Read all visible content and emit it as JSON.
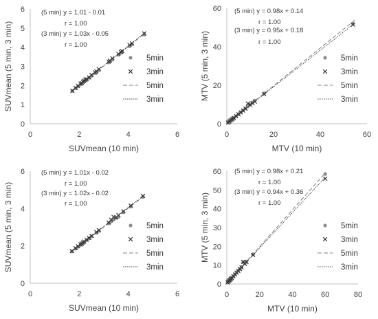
{
  "chart_data": [
    {
      "id": "p1",
      "type": "scatter",
      "xlabel": "SUVmean (10 min)",
      "ylabel": "SUVmean (5 min, 3 min)",
      "xlim": [
        0,
        6
      ],
      "ylim": [
        0,
        6
      ],
      "xticks": [
        0,
        2,
        4,
        6
      ],
      "yticks": [
        0,
        1,
        2,
        3,
        4,
        5,
        6
      ],
      "annotations": [
        "(5 min) y = 1.01 - 0.01",
        "r = 1.00",
        "(3 min) y = 1.03x - 0.05",
        "r = 1.00"
      ],
      "series": [
        {
          "name": "5min",
          "marker": "circle",
          "x": [
            1.72,
            1.85,
            1.95,
            2.05,
            2.1,
            2.15,
            2.2,
            2.25,
            2.3,
            2.4,
            2.5,
            2.65,
            2.7,
            2.8,
            3.2,
            3.25,
            3.35,
            3.6,
            3.7,
            3.75,
            4.05,
            4.15,
            4.65
          ],
          "y": [
            1.72,
            1.85,
            1.95,
            2.05,
            2.1,
            2.15,
            2.2,
            2.25,
            2.3,
            2.4,
            2.5,
            2.65,
            2.7,
            2.8,
            3.2,
            3.25,
            3.35,
            3.6,
            3.7,
            3.75,
            4.05,
            4.15,
            4.65
          ]
        },
        {
          "name": "3min",
          "marker": "x",
          "x": [
            1.72,
            1.85,
            1.95,
            2.05,
            2.1,
            2.15,
            2.2,
            2.25,
            2.3,
            2.4,
            2.5,
            2.65,
            2.7,
            2.8,
            3.2,
            3.25,
            3.35,
            3.6,
            3.7,
            3.75,
            4.05,
            4.15,
            4.65
          ],
          "y": [
            1.72,
            1.87,
            1.98,
            2.1,
            2.12,
            2.2,
            2.25,
            2.3,
            2.33,
            2.42,
            2.55,
            2.68,
            2.74,
            2.85,
            3.25,
            3.3,
            3.42,
            3.65,
            3.75,
            3.8,
            4.12,
            4.2,
            4.72
          ]
        }
      ],
      "fits": [
        {
          "name": "5min",
          "style": "dashed",
          "x": [
            1.7,
            4.7
          ],
          "y": [
            1.71,
            4.74
          ]
        },
        {
          "name": "3min",
          "style": "dotted",
          "x": [
            1.7,
            4.7
          ],
          "y": [
            1.7,
            4.79
          ]
        }
      ],
      "legend": {
        "position": "right",
        "entries": [
          "5min",
          "3min",
          "5min",
          "3min"
        ]
      }
    },
    {
      "id": "p2",
      "type": "scatter",
      "xlabel": "MTV (10 min)",
      "ylabel": "MTV (5 min, 3 min)",
      "xlim": [
        0,
        60
      ],
      "ylim": [
        0,
        60
      ],
      "xticks": [
        0,
        20,
        40,
        60
      ],
      "yticks": [
        0,
        20,
        40,
        60
      ],
      "annotations": [
        "(5 min) y = 0.98x + 0.14",
        "r = 1.00",
        "(3 min) y = 0.95x + 0.18",
        "r = 1.00"
      ],
      "series": [
        {
          "name": "5min",
          "marker": "circle",
          "x": [
            0.5,
            1,
            1.5,
            2,
            2.5,
            3,
            4,
            5,
            6,
            7,
            8,
            9,
            10,
            11,
            12,
            16,
            54
          ],
          "y": [
            0.6,
            1.1,
            1.6,
            2.1,
            2.6,
            3.1,
            4,
            5,
            6,
            7,
            8,
            9,
            10,
            11,
            12,
            15.8,
            52
          ]
        },
        {
          "name": "3min",
          "marker": "x",
          "x": [
            0.5,
            1,
            1.5,
            2,
            2.5,
            3,
            4,
            5,
            6,
            7,
            8,
            9,
            10,
            11,
            12,
            16,
            54
          ],
          "y": [
            0.6,
            1.1,
            1.6,
            2.1,
            2.5,
            3,
            3.9,
            4.9,
            5.9,
            6.8,
            7.8,
            10.5,
            9.8,
            10.7,
            11.5,
            15.4,
            51.5
          ]
        }
      ],
      "fits": [
        {
          "name": "5min",
          "style": "dashed",
          "x": [
            0,
            55
          ],
          "y": [
            0.14,
            54.04
          ]
        },
        {
          "name": "3min",
          "style": "dotted",
          "x": [
            0,
            55
          ],
          "y": [
            0.18,
            52.43
          ]
        }
      ],
      "legend": {
        "position": "right",
        "entries": [
          "5min",
          "3min",
          "5min",
          "3min"
        ]
      }
    },
    {
      "id": "p3",
      "type": "scatter",
      "xlabel": "SUVmean (10 min)",
      "ylabel": "SUVmean (5 min, 3 min)",
      "xlim": [
        0,
        6
      ],
      "ylim": [
        0,
        6
      ],
      "xticks": [
        0,
        2,
        4,
        6
      ],
      "yticks": [
        0,
        2,
        4,
        6
      ],
      "annotations": [
        "(5 min) y = 1.01x - 0.02",
        "r = 1.00",
        "(3 min) y = 1.02x - 0.02",
        "r = 1.00"
      ],
      "series": [
        {
          "name": "5min",
          "marker": "circle",
          "x": [
            1.7,
            1.85,
            1.95,
            2.05,
            2.1,
            2.15,
            2.2,
            2.3,
            2.4,
            2.5,
            2.7,
            2.8,
            3.2,
            3.3,
            3.4,
            3.5,
            3.6,
            3.8,
            4.1,
            4.6
          ],
          "y": [
            1.7,
            1.85,
            1.95,
            2.05,
            2.1,
            2.15,
            2.2,
            2.3,
            2.4,
            2.5,
            2.7,
            2.8,
            3.2,
            3.3,
            3.4,
            3.5,
            3.55,
            3.8,
            4.1,
            4.62
          ]
        },
        {
          "name": "3min",
          "marker": "x",
          "x": [
            1.7,
            1.85,
            1.95,
            2.05,
            2.1,
            2.15,
            2.2,
            2.3,
            2.4,
            2.5,
            2.7,
            2.8,
            3.2,
            3.3,
            3.4,
            3.5,
            3.6,
            3.8,
            4.1,
            4.6
          ],
          "y": [
            1.72,
            1.88,
            1.98,
            2.08,
            2.12,
            2.18,
            2.23,
            2.33,
            2.43,
            2.54,
            2.74,
            2.84,
            3.25,
            3.4,
            3.55,
            3.52,
            3.65,
            3.85,
            4.16,
            4.68
          ]
        }
      ],
      "fits": [
        {
          "name": "5min",
          "style": "dashed",
          "x": [
            1.7,
            4.6
          ],
          "y": [
            1.7,
            4.63
          ]
        },
        {
          "name": "3min",
          "style": "dotted",
          "x": [
            1.7,
            4.6
          ],
          "y": [
            1.71,
            4.67
          ]
        }
      ],
      "legend": {
        "position": "right",
        "entries": [
          "5min",
          "3min",
          "5min",
          "3min"
        ]
      }
    },
    {
      "id": "p4",
      "type": "scatter",
      "xlabel": "MTV (10 min)",
      "ylabel": "MTV (5 min, 3 min)",
      "xlim": [
        0,
        80
      ],
      "ylim": [
        0,
        60
      ],
      "xticks": [
        0,
        20,
        40,
        60,
        80
      ],
      "yticks": [
        0,
        10,
        20,
        30,
        40,
        50,
        60
      ],
      "annotations": [
        "(5 min) y = 0.98x + 0.21",
        "r = 1.00",
        "(3 min) y = 0.94x + 0.36",
        "r = 1.00"
      ],
      "series": [
        {
          "name": "5min",
          "marker": "circle",
          "x": [
            0.5,
            1,
            1.5,
            2,
            2.5,
            3,
            4,
            5,
            6,
            7,
            8,
            9,
            10,
            11,
            12,
            16,
            60
          ],
          "y": [
            0.7,
            1.2,
            1.7,
            2.2,
            2.7,
            3.2,
            4.1,
            5.1,
            6.1,
            7.1,
            8,
            9,
            11.5,
            11,
            12,
            15.8,
            58.5
          ]
        },
        {
          "name": "3min",
          "marker": "x",
          "x": [
            0.5,
            1,
            1.5,
            2,
            2.5,
            3,
            4,
            5,
            6,
            7,
            8,
            9,
            10,
            11,
            12,
            16,
            60
          ],
          "y": [
            0.8,
            1.3,
            1.8,
            2.2,
            2.7,
            3.2,
            4.1,
            5,
            6,
            6.9,
            7.9,
            8.8,
            11.8,
            10.7,
            11.6,
            15.4,
            56
          ]
        }
      ],
      "fits": [
        {
          "name": "5min",
          "style": "dashed",
          "x": [
            0,
            60
          ],
          "y": [
            0.21,
            59.01
          ]
        },
        {
          "name": "3min",
          "style": "dotted",
          "x": [
            0,
            60
          ],
          "y": [
            0.36,
            56.76
          ]
        }
      ],
      "legend": {
        "position": "right",
        "entries": [
          "5min",
          "3min",
          "5min",
          "3min"
        ]
      }
    }
  ],
  "colors": {
    "axis": "#bfbfbf",
    "text": "#404040",
    "marker5": "#8c8c8c",
    "marker3": "#333333",
    "fit5": "#7f7f7f",
    "fit3": "#404040"
  }
}
